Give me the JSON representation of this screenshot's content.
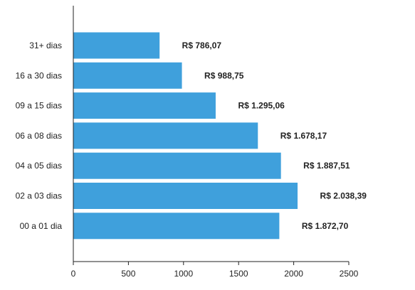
{
  "chart_data": {
    "type": "bar",
    "orientation": "horizontal",
    "title": "",
    "xlabel": "",
    "ylabel": "",
    "categories": [
      "31+ dias",
      "16 a 30 dias",
      "09 a 15 dias",
      "06 a 08 dias",
      "04 a 05 dias",
      "02 a 03 dias",
      "00 a 01 dia"
    ],
    "values": [
      786.07,
      988.75,
      1295.06,
      1678.17,
      1887.51,
      2038.39,
      1872.7
    ],
    "value_labels": [
      "R$ 786,07",
      "R$ 988,75",
      "R$ 1.295,06",
      "R$ 1.678,17",
      "R$ 1.887,51",
      "R$ 2.038,39",
      "R$ 1.872,70"
    ],
    "x_ticks": [
      0,
      500,
      1000,
      1500,
      2000,
      2500
    ],
    "x_tick_labels": [
      "0",
      "500",
      "1000",
      "1500",
      "2000",
      "2500"
    ],
    "xlim": [
      0,
      2500
    ],
    "grid": false,
    "legend": "none",
    "bar_color": "#3fa0dc",
    "axis_color": "#222222",
    "text_color": "#222222"
  }
}
